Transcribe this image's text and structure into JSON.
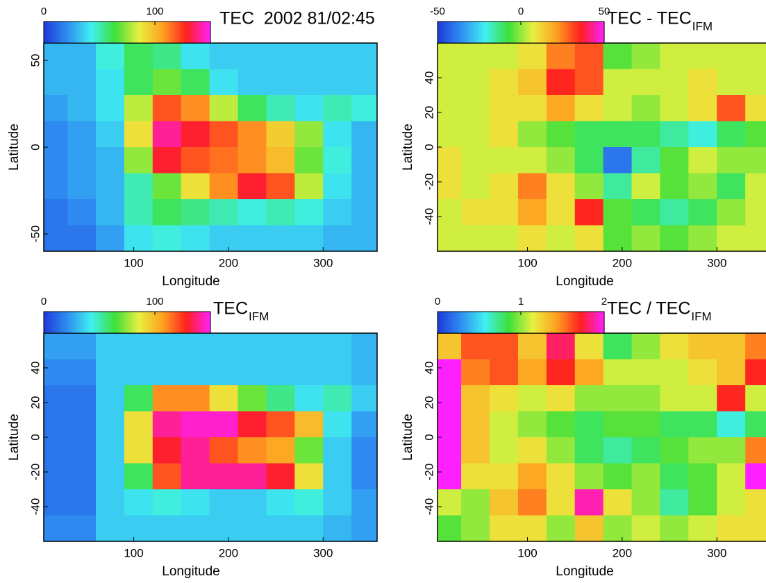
{
  "chart_data": [
    {
      "type": "heatmap",
      "title": "TEC  2002 81/02:45",
      "x_label": "Longitude",
      "y_label": "Latitude",
      "x": [
        15,
        45,
        75,
        105,
        135,
        165,
        195,
        225,
        255,
        285,
        315,
        345
      ],
      "y": [
        52.5,
        37.5,
        22.5,
        7.5,
        -7.5,
        -22.5,
        -37.5,
        -52.5
      ],
      "z": [
        [
          30,
          30,
          45,
          60,
          55,
          40,
          35,
          35,
          35,
          35,
          35,
          35
        ],
        [
          30,
          30,
          40,
          60,
          70,
          60,
          40,
          35,
          35,
          35,
          35,
          35
        ],
        [
          25,
          30,
          40,
          80,
          120,
          110,
          80,
          60,
          50,
          40,
          50,
          45
        ],
        [
          20,
          25,
          35,
          90,
          140,
          130,
          120,
          110,
          95,
          75,
          40,
          30
        ],
        [
          20,
          25,
          30,
          75,
          130,
          120,
          115,
          110,
          100,
          70,
          45,
          30
        ],
        [
          20,
          25,
          30,
          50,
          70,
          90,
          110,
          130,
          120,
          80,
          40,
          30
        ],
        [
          15,
          20,
          30,
          50,
          60,
          55,
          50,
          45,
          50,
          45,
          35,
          30
        ],
        [
          15,
          15,
          25,
          40,
          45,
          40,
          35,
          35,
          35,
          35,
          30,
          30
        ]
      ],
      "xlim": [
        5,
        357
      ],
      "xticks": [
        100,
        200,
        300
      ],
      "ylim": [
        -60,
        60
      ],
      "yticks": [
        -50,
        0,
        50
      ],
      "colorbar": {
        "range": [
          0,
          150
        ],
        "ticks": [
          0,
          100
        ]
      },
      "colormap": [
        "#1e3ad8",
        "#2f8ff2",
        "#40f0f0",
        "#3ee03a",
        "#e8f040",
        "#ffa020",
        "#ff2020",
        "#ff20ff"
      ]
    },
    {
      "type": "heatmap",
      "title": "TEC - TEC",
      "title_subscript": "IFM",
      "x_label": "Longitude",
      "y_label": "Latitude",
      "x": [
        15,
        45,
        75,
        105,
        135,
        165,
        195,
        225,
        255,
        285,
        315,
        345
      ],
      "y": [
        52.5,
        37.5,
        22.5,
        7.5,
        -7.5,
        -22.5,
        -37.5,
        -52.5
      ],
      "z": [
        [
          5,
          5,
          5,
          10,
          25,
          30,
          -5,
          0,
          5,
          5,
          5,
          5
        ],
        [
          5,
          5,
          10,
          15,
          35,
          30,
          5,
          5,
          5,
          10,
          5,
          5
        ],
        [
          5,
          5,
          10,
          10,
          20,
          10,
          5,
          0,
          5,
          10,
          30,
          10
        ],
        [
          5,
          5,
          10,
          0,
          -5,
          -10,
          -10,
          -10,
          -15,
          -20,
          -10,
          -5
        ],
        [
          10,
          5,
          5,
          5,
          0,
          -10,
          -40,
          -15,
          -5,
          5,
          0,
          0
        ],
        [
          10,
          5,
          10,
          25,
          10,
          0,
          -15,
          5,
          -5,
          0,
          -10,
          5
        ],
        [
          5,
          10,
          10,
          20,
          10,
          35,
          -5,
          -10,
          -15,
          -10,
          0,
          5
        ],
        [
          5,
          5,
          5,
          10,
          5,
          10,
          -5,
          0,
          -5,
          0,
          5,
          5
        ]
      ],
      "xlim": [
        5,
        357
      ],
      "xticks": [
        100,
        200,
        300
      ],
      "ylim": [
        -60,
        60
      ],
      "yticks": [
        -40,
        -20,
        0,
        20,
        40
      ],
      "colorbar": {
        "range": [
          -50,
          50
        ],
        "ticks": [
          -50,
          0,
          50
        ]
      },
      "colormap": [
        "#1e3ad8",
        "#2f8ff2",
        "#40f0f0",
        "#3ee03a",
        "#e8f040",
        "#ffa020",
        "#ff2020",
        "#ff20ff"
      ]
    },
    {
      "type": "heatmap",
      "title": "TEC",
      "title_subscript": "IFM",
      "x_label": "Longitude",
      "y_label": "Latitude",
      "x": [
        15,
        45,
        75,
        105,
        135,
        165,
        195,
        225,
        255,
        285,
        315,
        345
      ],
      "y": [
        52.5,
        37.5,
        22.5,
        7.5,
        -7.5,
        -22.5,
        -37.5,
        -52.5
      ],
      "z": [
        [
          25,
          25,
          35,
          35,
          35,
          35,
          35,
          35,
          35,
          35,
          35,
          30
        ],
        [
          20,
          20,
          35,
          35,
          35,
          35,
          35,
          35,
          35,
          35,
          35,
          30
        ],
        [
          15,
          15,
          35,
          60,
          110,
          110,
          90,
          70,
          55,
          40,
          50,
          35
        ],
        [
          15,
          15,
          35,
          90,
          140,
          145,
          145,
          130,
          120,
          100,
          40,
          25
        ],
        [
          15,
          15,
          35,
          90,
          130,
          140,
          120,
          110,
          105,
          70,
          35,
          20
        ],
        [
          15,
          15,
          35,
          60,
          120,
          140,
          140,
          140,
          130,
          90,
          35,
          20
        ],
        [
          15,
          15,
          35,
          40,
          45,
          40,
          35,
          35,
          40,
          45,
          35,
          25
        ],
        [
          20,
          20,
          35,
          35,
          35,
          35,
          35,
          35,
          35,
          35,
          30,
          25
        ]
      ],
      "xlim": [
        5,
        357
      ],
      "xticks": [
        100,
        200,
        300
      ],
      "ylim": [
        -60,
        60
      ],
      "yticks": [
        -40,
        -20,
        0,
        20,
        40
      ],
      "colorbar": {
        "range": [
          0,
          150
        ],
        "ticks": [
          0,
          100
        ]
      },
      "colormap": [
        "#1e3ad8",
        "#2f8ff2",
        "#40f0f0",
        "#3ee03a",
        "#e8f040",
        "#ffa020",
        "#ff2020",
        "#ff20ff"
      ]
    },
    {
      "type": "heatmap",
      "title": "TEC / TEC",
      "title_subscript": "IFM",
      "x_label": "Longitude",
      "y_label": "Latitude",
      "x": [
        15,
        45,
        75,
        105,
        135,
        165,
        195,
        225,
        255,
        285,
        315,
        345
      ],
      "y": [
        52.5,
        37.5,
        22.5,
        7.5,
        -7.5,
        -22.5,
        -37.5,
        -52.5
      ],
      "z": [
        [
          1.3,
          1.6,
          1.6,
          1.3,
          1.8,
          1.2,
          0.8,
          1.0,
          1.2,
          1.3,
          1.3,
          1.5
        ],
        [
          2,
          1.5,
          1.6,
          1.4,
          1.7,
          1.4,
          1.1,
          1.1,
          1.1,
          1.2,
          1.3,
          1.7
        ],
        [
          2,
          1.3,
          1.2,
          1.1,
          1.2,
          1.0,
          1.0,
          1.0,
          1.1,
          1.1,
          1.7,
          1.1
        ],
        [
          2,
          1.3,
          1.1,
          1.0,
          0.9,
          0.8,
          0.9,
          0.9,
          0.8,
          0.8,
          0.6,
          0.8
        ],
        [
          2,
          1.3,
          1.1,
          1.2,
          1.0,
          0.8,
          0.7,
          0.8,
          0.9,
          1.0,
          1.0,
          1.5
        ],
        [
          2,
          1.2,
          1.2,
          1.4,
          1.2,
          1.0,
          0.9,
          1.0,
          0.8,
          0.9,
          1.1,
          2
        ],
        [
          1.1,
          1.0,
          1.3,
          1.5,
          1.2,
          1.9,
          1.2,
          1.0,
          0.7,
          0.9,
          1.1,
          1.2
        ],
        [
          0.9,
          1.0,
          1.2,
          1.2,
          1.0,
          1.3,
          1.0,
          1.1,
          1.0,
          1.1,
          1.2,
          1.2
        ]
      ],
      "xlim": [
        5,
        357
      ],
      "xticks": [
        100,
        200,
        300
      ],
      "ylim": [
        -60,
        60
      ],
      "yticks": [
        -40,
        -20,
        0,
        20,
        40
      ],
      "colorbar": {
        "range": [
          0,
          2
        ],
        "ticks": [
          0,
          1,
          2
        ]
      },
      "colormap": [
        "#1e3ad8",
        "#2f8ff2",
        "#40f0f0",
        "#3ee03a",
        "#e8f040",
        "#ffa020",
        "#ff2020",
        "#ff20ff"
      ]
    }
  ]
}
